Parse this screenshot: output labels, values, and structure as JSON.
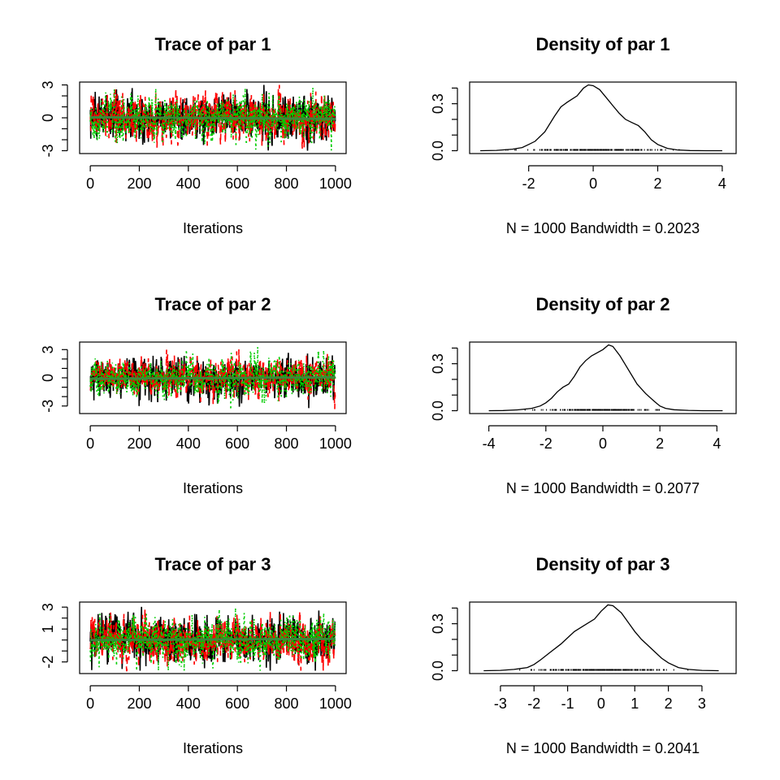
{
  "chart_data": [
    {
      "type": "line",
      "kind": "trace",
      "title": "Trace of par 1",
      "xlabel": "Iterations",
      "xlim": [
        0,
        1000
      ],
      "ylim": [
        -3,
        3
      ],
      "xticks": [
        0,
        200,
        400,
        600,
        800,
        1000
      ],
      "yticks": [
        -3,
        0,
        3
      ],
      "yticks_minor": [
        -2,
        -1,
        1,
        2
      ],
      "series": [
        {
          "color": "#000000",
          "dash": "",
          "mean": 0.05,
          "sd": 1.0,
          "x": [
            0,
            1000
          ]
        },
        {
          "color": "#ff0000",
          "dash": "8,6",
          "mean": 0.0,
          "sd": 1.0,
          "x": [
            0,
            1000
          ]
        },
        {
          "color": "#00cc00",
          "dash": "2,4",
          "mean": -0.05,
          "sd": 1.0,
          "x": [
            0,
            1000
          ]
        }
      ],
      "mean_line": {
        "color": "#3a8a3a",
        "y": [
          0.05,
          -0.1
        ]
      }
    },
    {
      "type": "line",
      "kind": "density",
      "title": "Density of par 1",
      "xlabel": "N = 1000   Bandwidth = 0.2023",
      "xlim": [
        -3.5,
        4.1
      ],
      "ylim": [
        0,
        0.42
      ],
      "xticks": [
        -2,
        0,
        2,
        4
      ],
      "yticks": [
        0.0,
        0.3
      ],
      "yticks_labels": [
        "0.0",
        "0.3"
      ],
      "yticks_minor": [
        0.1,
        0.2,
        0.4
      ],
      "x": [
        -3.5,
        -3.0,
        -2.5,
        -2.2,
        -2.0,
        -1.8,
        -1.5,
        -1.2,
        -1.0,
        -0.8,
        -0.5,
        -0.3,
        -0.15,
        0.0,
        0.2,
        0.4,
        0.6,
        0.8,
        1.0,
        1.2,
        1.4,
        1.6,
        1.8,
        2.0,
        2.3,
        2.6,
        3.0,
        3.5,
        4.0
      ],
      "y": [
        0.0,
        0.002,
        0.01,
        0.02,
        0.04,
        0.06,
        0.12,
        0.22,
        0.28,
        0.31,
        0.35,
        0.4,
        0.42,
        0.415,
        0.39,
        0.34,
        0.29,
        0.24,
        0.2,
        0.18,
        0.16,
        0.12,
        0.07,
        0.04,
        0.015,
        0.005,
        0.001,
        0.0,
        0.0
      ],
      "rug_range": [
        -2.8,
        3.4
      ]
    },
    {
      "type": "line",
      "kind": "trace",
      "title": "Trace of par 2",
      "xlabel": "Iterations",
      "xlim": [
        0,
        1000
      ],
      "ylim": [
        -3.5,
        3.5
      ],
      "xticks": [
        0,
        200,
        400,
        600,
        800,
        1000
      ],
      "yticks": [
        -3,
        0,
        3
      ],
      "yticks_minor": [
        -2,
        -1,
        1,
        2
      ],
      "series": [
        {
          "color": "#000000",
          "dash": "",
          "mean": -0.05,
          "sd": 1.0,
          "x": [
            0,
            1000
          ]
        },
        {
          "color": "#ff0000",
          "dash": "8,6",
          "mean": 0.05,
          "sd": 1.0,
          "x": [
            0,
            1000
          ]
        },
        {
          "color": "#00cc00",
          "dash": "2,4",
          "mean": 0.0,
          "sd": 1.0,
          "x": [
            0,
            1000
          ]
        }
      ],
      "mean_line": {
        "color": "#3a8a3a",
        "y": [
          -0.1,
          0.05
        ]
      }
    },
    {
      "type": "line",
      "kind": "density",
      "title": "Density of par 2",
      "xlabel": "N = 1000   Bandwidth = 0.2077",
      "xlim": [
        -4.3,
        4.3
      ],
      "ylim": [
        0,
        0.42
      ],
      "xticks": [
        -4,
        -2,
        0,
        2,
        4
      ],
      "yticks": [
        0.0,
        0.3
      ],
      "yticks_labels": [
        "0.0",
        "0.3"
      ],
      "yticks_minor": [
        0.1,
        0.2,
        0.4
      ],
      "x": [
        -4.0,
        -3.5,
        -3.0,
        -2.5,
        -2.2,
        -2.0,
        -1.8,
        -1.6,
        -1.4,
        -1.2,
        -1.0,
        -0.8,
        -0.6,
        -0.4,
        -0.2,
        0.0,
        0.2,
        0.35,
        0.6,
        0.8,
        1.0,
        1.2,
        1.5,
        1.8,
        2.0,
        2.2,
        2.5,
        3.0,
        3.5,
        4.2
      ],
      "y": [
        0.0,
        0.001,
        0.005,
        0.015,
        0.03,
        0.05,
        0.08,
        0.12,
        0.15,
        0.17,
        0.22,
        0.28,
        0.32,
        0.35,
        0.37,
        0.39,
        0.42,
        0.41,
        0.35,
        0.29,
        0.23,
        0.17,
        0.11,
        0.06,
        0.03,
        0.015,
        0.006,
        0.002,
        0.0,
        0.0
      ],
      "rug_range": [
        -3.2,
        3.4
      ]
    },
    {
      "type": "line",
      "kind": "trace",
      "title": "Trace of par 3",
      "xlabel": "Iterations",
      "xlim": [
        0,
        1000
      ],
      "ylim": [
        -2.8,
        3.2
      ],
      "xticks": [
        0,
        200,
        400,
        600,
        800,
        1000
      ],
      "yticks": [
        -2,
        1,
        3
      ],
      "yticks_minor": [
        -1,
        0,
        2
      ],
      "series": [
        {
          "color": "#000000",
          "dash": "",
          "mean": 0.05,
          "sd": 1.0,
          "x": [
            0,
            1000
          ]
        },
        {
          "color": "#ff0000",
          "dash": "8,6",
          "mean": 0.0,
          "sd": 1.0,
          "x": [
            0,
            1000
          ]
        },
        {
          "color": "#00cc00",
          "dash": "2,4",
          "mean": 0.05,
          "sd": 1.0,
          "x": [
            0,
            1000
          ]
        }
      ],
      "mean_line": {
        "color": "#3a8a3a",
        "y": [
          0.0,
          0.1
        ]
      }
    },
    {
      "type": "line",
      "kind": "density",
      "title": "Density of par 3",
      "xlabel": "N = 1000   Bandwidth = 0.2041",
      "xlim": [
        -3.6,
        3.7
      ],
      "ylim": [
        0,
        0.42
      ],
      "xticks": [
        -3,
        -2,
        -1,
        0,
        1,
        2,
        3
      ],
      "yticks": [
        0.0,
        0.3
      ],
      "yticks_labels": [
        "0.0",
        "0.3"
      ],
      "yticks_minor": [
        0.1,
        0.2,
        0.4
      ],
      "x": [
        -3.5,
        -3.0,
        -2.6,
        -2.2,
        -2.0,
        -1.8,
        -1.5,
        -1.2,
        -1.0,
        -0.8,
        -0.5,
        -0.2,
        0.0,
        0.2,
        0.35,
        0.6,
        0.8,
        1.0,
        1.2,
        1.5,
        1.8,
        2.0,
        2.3,
        2.6,
        3.0,
        3.5
      ],
      "y": [
        0.0,
        0.002,
        0.008,
        0.02,
        0.04,
        0.07,
        0.12,
        0.17,
        0.21,
        0.25,
        0.29,
        0.33,
        0.38,
        0.42,
        0.415,
        0.37,
        0.31,
        0.25,
        0.2,
        0.14,
        0.08,
        0.05,
        0.02,
        0.008,
        0.002,
        0.0
      ],
      "rug_range": [
        -2.9,
        3.4
      ]
    }
  ]
}
